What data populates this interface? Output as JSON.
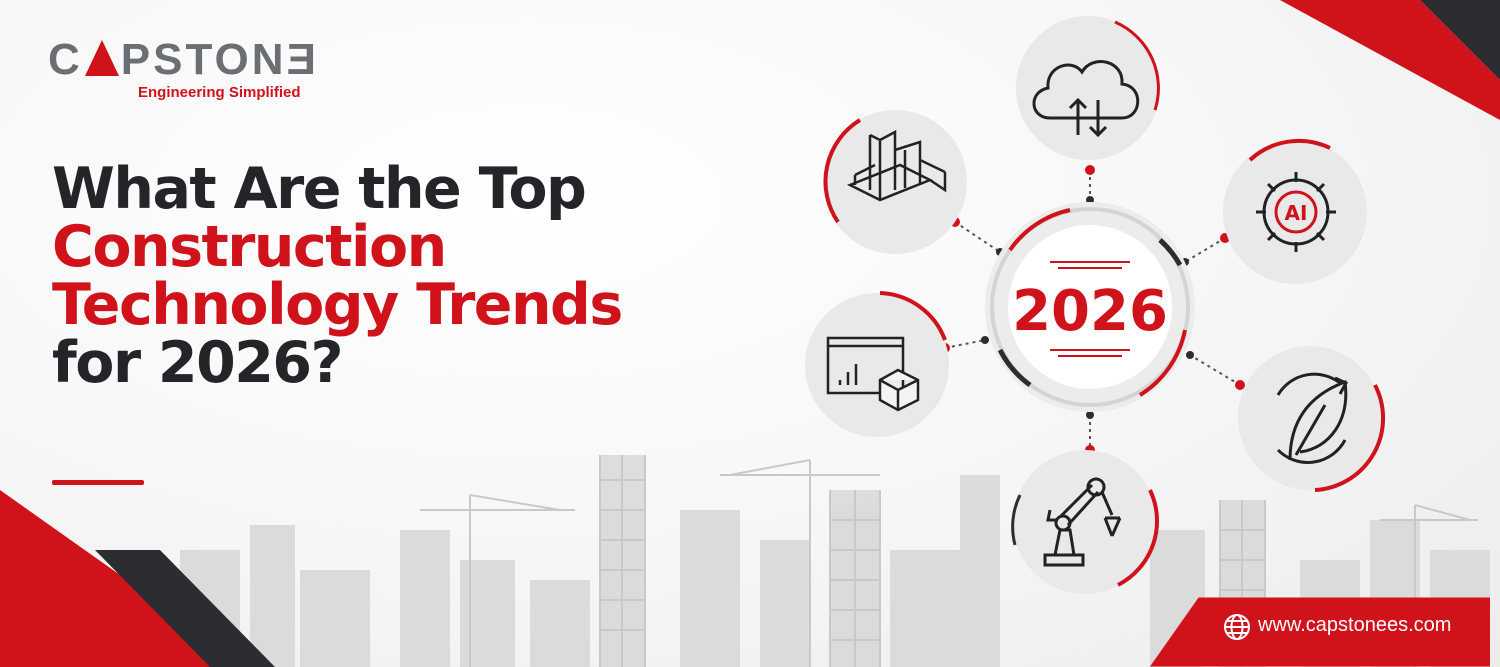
{
  "logo": {
    "name_before": "C",
    "name_after": "PSTON",
    "name_end": "Ǝ",
    "tagline": "Engineering Simplified"
  },
  "headline": {
    "line1": "What Are the Top",
    "line2": "Construction",
    "line3": "Technology Trends",
    "line4": "for 2026?"
  },
  "center_badge": "2026",
  "icons": [
    {
      "name": "cloud-sync-icon"
    },
    {
      "name": "bim-building-icon"
    },
    {
      "name": "ai-gear-icon",
      "label": "AI"
    },
    {
      "name": "analytics-cube-icon"
    },
    {
      "name": "sustainability-leaf-icon"
    },
    {
      "name": "robotic-arm-icon"
    }
  ],
  "footer": {
    "url": "www.capstonees.com",
    "globe_icon": "globe-icon"
  },
  "colors": {
    "brand_red": "#d0121b",
    "dark": "#232529",
    "gray": "#6b6e73"
  }
}
